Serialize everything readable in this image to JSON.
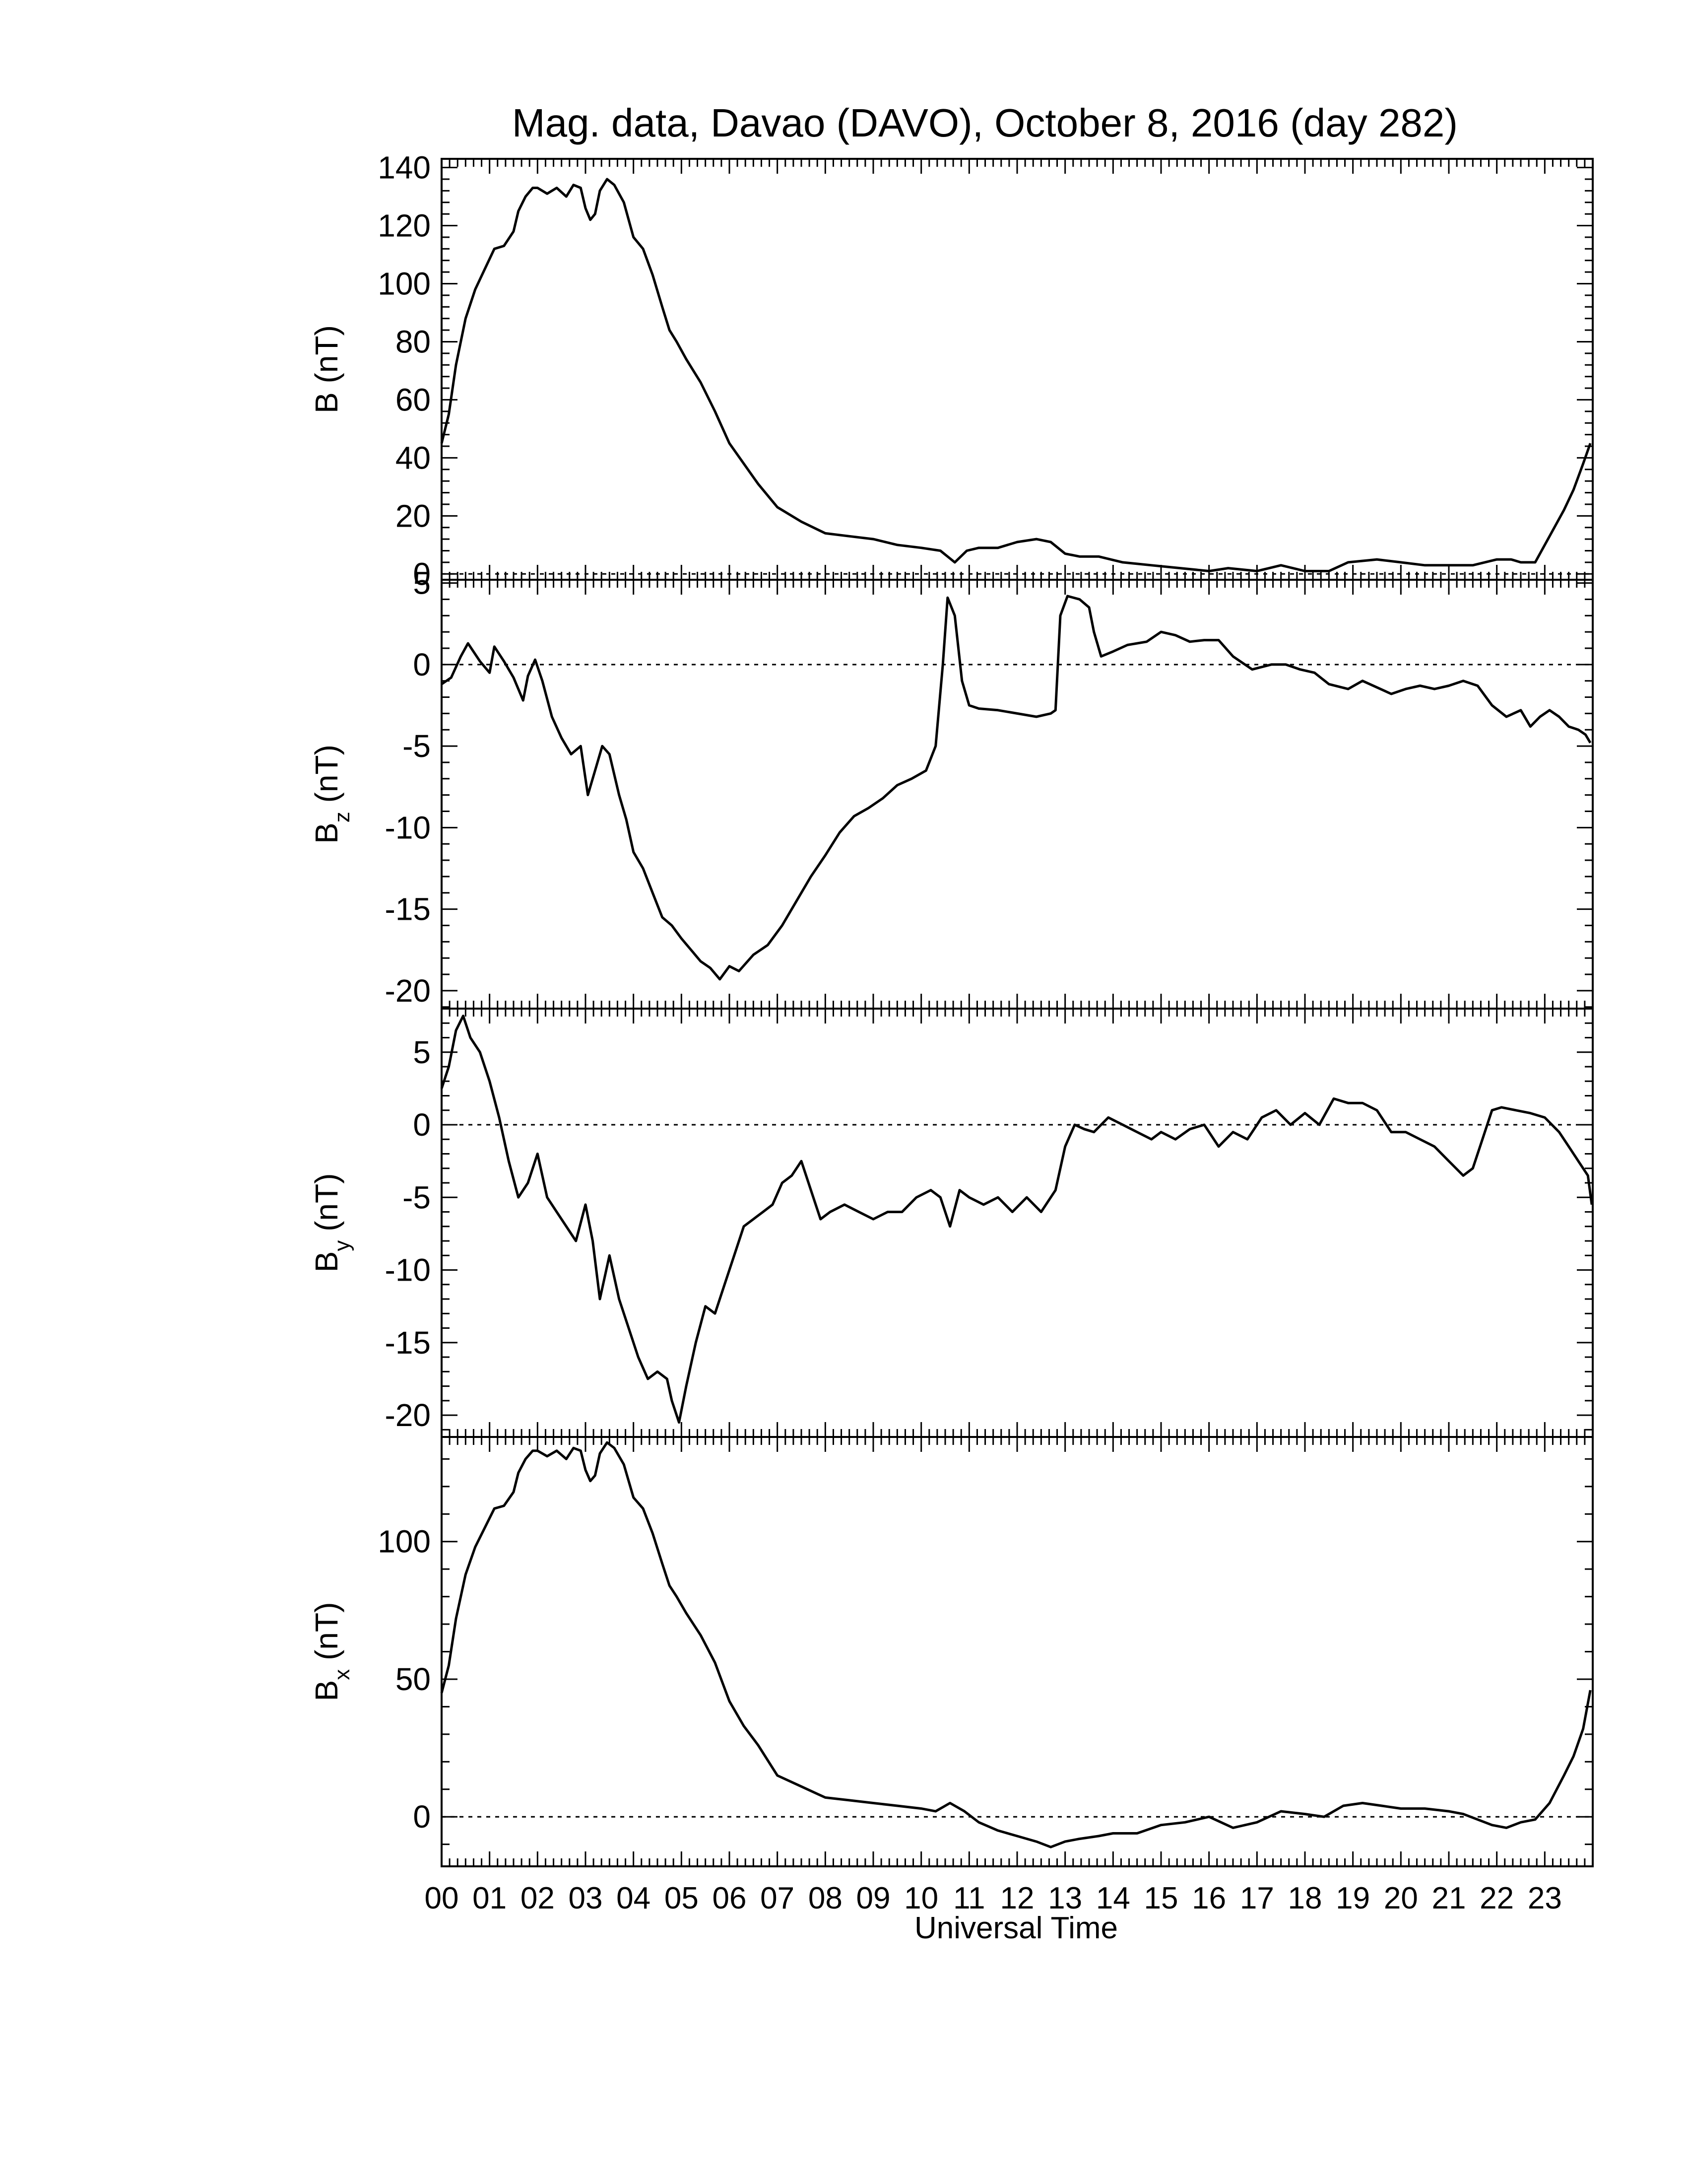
{
  "title": "Mag. data, Davao (DAVO), October 8, 2016 (day 282)",
  "xlabel": "Universal Time",
  "xticks": [
    "00",
    "01",
    "02",
    "03",
    "04",
    "05",
    "06",
    "07",
    "08",
    "09",
    "10",
    "11",
    "12",
    "13",
    "14",
    "15",
    "16",
    "17",
    "18",
    "19",
    "20",
    "21",
    "22",
    "23"
  ],
  "line_color": "#000000",
  "chart_data": [
    {
      "type": "line",
      "ylabel": "B (nT)",
      "ylabel_main": "B",
      "ylabel_sub": "",
      "ylabel_unit": " (nT)",
      "ylim": [
        -2,
        143
      ],
      "xlim": [
        0,
        24
      ],
      "yticks": [
        0,
        20,
        40,
        60,
        80,
        100,
        120,
        140
      ],
      "zero_line": true,
      "series": [
        {
          "x": [
            0,
            0.15,
            0.3,
            0.5,
            0.7,
            0.9,
            1.1,
            1.3,
            1.5,
            1.6,
            1.75,
            1.9,
            2.0,
            2.2,
            2.4,
            2.6,
            2.75,
            2.9,
            3.0,
            3.1,
            3.2,
            3.3,
            3.45,
            3.6,
            3.8,
            4.0,
            4.2,
            4.4,
            4.6,
            4.75,
            4.9,
            5.1,
            5.4,
            5.7,
            6.0,
            6.3,
            6.6,
            7.0,
            7.5,
            8.0,
            8.5,
            9.0,
            9.5,
            10.0,
            10.4,
            10.7,
            10.95,
            11.2,
            11.6,
            12.0,
            12.4,
            12.7,
            13.0,
            13.3,
            13.7,
            14.2,
            14.8,
            15.4,
            16.0,
            16.4,
            17.0,
            17.5,
            18.0,
            18.5,
            18.9,
            19.5,
            20.0,
            20.5,
            21.0,
            21.5,
            22.0,
            22.3,
            22.5,
            22.8,
            23.1,
            23.4,
            23.6,
            23.8,
            23.95
          ],
          "y": [
            45,
            55,
            72,
            88,
            98,
            105,
            112,
            113,
            118,
            125,
            130,
            133,
            133,
            131,
            133,
            130,
            134,
            133,
            126,
            122,
            124,
            132,
            136,
            134,
            128,
            116,
            112,
            103,
            92,
            84,
            80,
            74,
            66,
            56,
            45,
            38,
            31,
            23,
            18,
            14,
            13,
            12,
            10,
            9,
            8,
            4,
            8,
            9,
            9,
            11,
            12,
            11,
            7,
            6,
            6,
            4,
            3,
            2,
            1,
            2,
            1,
            3,
            1,
            1,
            4,
            5,
            4,
            3,
            3,
            3,
            5,
            5,
            4,
            4,
            13,
            22,
            29,
            38,
            45
          ]
        }
      ]
    },
    {
      "type": "line",
      "ylabel": "Bz (nT)",
      "ylabel_main": "B",
      "ylabel_sub": "z",
      "ylabel_unit": " (nT)",
      "ylim": [
        -21.1,
        5.2
      ],
      "xlim": [
        0,
        24
      ],
      "yticks": [
        5,
        0,
        -5,
        -10,
        -15,
        -20
      ],
      "zero_line": true,
      "series": [
        {
          "x": [
            0,
            0.2,
            0.4,
            0.55,
            0.8,
            1.0,
            1.1,
            1.3,
            1.5,
            1.7,
            1.8,
            1.95,
            2.1,
            2.3,
            2.5,
            2.7,
            2.9,
            3.05,
            3.2,
            3.35,
            3.5,
            3.7,
            3.85,
            4.0,
            4.2,
            4.4,
            4.6,
            4.8,
            5.0,
            5.2,
            5.4,
            5.6,
            5.8,
            6.0,
            6.2,
            6.5,
            6.8,
            7.1,
            7.4,
            7.7,
            8.0,
            8.3,
            8.6,
            8.9,
            9.2,
            9.5,
            9.8,
            10.1,
            10.3,
            10.45,
            10.55,
            10.7,
            10.85,
            11.0,
            11.2,
            11.6,
            12.0,
            12.4,
            12.7,
            12.8,
            12.9,
            13.05,
            13.3,
            13.5,
            13.6,
            13.75,
            14.0,
            14.3,
            14.7,
            15.0,
            15.3,
            15.6,
            15.9,
            16.2,
            16.5,
            16.9,
            17.3,
            17.6,
            17.9,
            18.2,
            18.5,
            18.9,
            19.2,
            19.5,
            19.8,
            20.1,
            20.4,
            20.7,
            21.0,
            21.3,
            21.6,
            21.9,
            22.2,
            22.5,
            22.7,
            22.9,
            23.1,
            23.3,
            23.5,
            23.7,
            23.85,
            23.95
          ],
          "y": [
            -1.2,
            -0.8,
            0.5,
            1.3,
            0.2,
            -0.5,
            1.1,
            0.2,
            -0.8,
            -2.2,
            -0.7,
            0.3,
            -1.0,
            -3.2,
            -4.5,
            -5.5,
            -5.0,
            -8.0,
            -6.5,
            -5.0,
            -5.5,
            -8.0,
            -9.5,
            -11.5,
            -12.5,
            -14.0,
            -15.5,
            -16.0,
            -16.8,
            -17.5,
            -18.2,
            -18.6,
            -19.3,
            -18.5,
            -18.8,
            -17.8,
            -17.2,
            -16.0,
            -14.5,
            -13.0,
            -11.7,
            -10.3,
            -9.3,
            -8.8,
            -8.2,
            -7.4,
            -7.0,
            -6.5,
            -5.0,
            0.0,
            4.1,
            3.0,
            -1.0,
            -2.5,
            -2.7,
            -2.8,
            -3.0,
            -3.2,
            -3.0,
            -2.8,
            3.0,
            4.2,
            4.0,
            3.5,
            2.0,
            0.5,
            0.8,
            1.2,
            1.4,
            2.0,
            1.8,
            1.4,
            1.5,
            1.5,
            0.5,
            -0.3,
            0.0,
            0.0,
            -0.3,
            -0.5,
            -1.2,
            -1.5,
            -1.0,
            -1.4,
            -1.8,
            -1.5,
            -1.3,
            -1.5,
            -1.3,
            -1.0,
            -1.3,
            -2.5,
            -3.2,
            -2.8,
            -3.8,
            -3.2,
            -2.8,
            -3.2,
            -3.8,
            -4.0,
            -4.3,
            -4.8
          ]
        }
      ]
    },
    {
      "type": "line",
      "ylabel": "By (nT)",
      "ylabel_main": "B",
      "ylabel_sub": "y",
      "ylabel_unit": " (nT)",
      "ylim": [
        -21.5,
        8.0
      ],
      "xlim": [
        0,
        24
      ],
      "yticks": [
        5,
        0,
        -5,
        -10,
        -15,
        -20
      ],
      "zero_line": true,
      "series": [
        {
          "x": [
            0,
            0.15,
            0.3,
            0.45,
            0.6,
            0.8,
            1.0,
            1.2,
            1.4,
            1.6,
            1.8,
            2.0,
            2.2,
            2.4,
            2.6,
            2.8,
            3.0,
            3.15,
            3.3,
            3.5,
            3.7,
            3.9,
            4.1,
            4.3,
            4.5,
            4.7,
            4.8,
            4.95,
            5.1,
            5.3,
            5.5,
            5.7,
            5.9,
            6.1,
            6.3,
            6.5,
            6.7,
            6.9,
            7.1,
            7.3,
            7.5,
            7.7,
            7.9,
            8.1,
            8.4,
            8.7,
            9.0,
            9.3,
            9.6,
            9.9,
            10.2,
            10.4,
            10.6,
            10.8,
            11.0,
            11.3,
            11.6,
            11.9,
            12.2,
            12.5,
            12.8,
            13.0,
            13.2,
            13.4,
            13.6,
            13.9,
            14.2,
            14.5,
            14.8,
            15.0,
            15.3,
            15.6,
            15.9,
            16.2,
            16.5,
            16.8,
            17.1,
            17.4,
            17.7,
            18.0,
            18.3,
            18.6,
            18.9,
            19.2,
            19.5,
            19.8,
            20.1,
            20.4,
            20.7,
            21.0,
            21.3,
            21.5,
            21.7,
            21.9,
            22.1,
            22.4,
            22.7,
            23.0,
            23.3,
            23.5,
            23.7,
            23.9,
            23.98
          ],
          "y": [
            2.5,
            4.0,
            6.5,
            7.5,
            6.0,
            5.0,
            3.0,
            0.5,
            -2.5,
            -5.0,
            -4.0,
            -2.0,
            -5.0,
            -6.0,
            -7.0,
            -8.0,
            -5.5,
            -8.0,
            -12.0,
            -9.0,
            -12.0,
            -14.0,
            -16.0,
            -17.5,
            -17.0,
            -17.5,
            -19.0,
            -20.5,
            -18.0,
            -15.0,
            -12.5,
            -13.0,
            -11.0,
            -9.0,
            -7.0,
            -6.5,
            -6.0,
            -5.5,
            -4.0,
            -3.5,
            -2.5,
            -4.5,
            -6.5,
            -6.0,
            -5.5,
            -6.0,
            -6.5,
            -6.0,
            -6.0,
            -5.0,
            -4.5,
            -5.0,
            -7.0,
            -4.5,
            -5.0,
            -5.5,
            -5.0,
            -6.0,
            -5.0,
            -6.0,
            -4.5,
            -1.5,
            0.0,
            -0.3,
            -0.5,
            0.5,
            0.0,
            -0.5,
            -1.0,
            -0.5,
            -1.0,
            -0.3,
            0.0,
            -1.5,
            -0.5,
            -1.0,
            0.5,
            1.0,
            0.0,
            0.8,
            0.0,
            1.8,
            1.5,
            1.5,
            1.0,
            -0.5,
            -0.5,
            -1.0,
            -1.5,
            -2.5,
            -3.5,
            -3.0,
            -1.0,
            1.0,
            1.2,
            1.0,
            0.8,
            0.5,
            -0.5,
            -1.5,
            -2.5,
            -3.5,
            -5.5
          ]
        }
      ]
    },
    {
      "type": "line",
      "ylabel": "Bx (nT)",
      "ylabel_main": "B",
      "ylabel_sub": "x",
      "ylabel_unit": " (nT)",
      "ylim": [
        -18,
        138
      ],
      "xlim": [
        0,
        24
      ],
      "yticks": [
        0,
        50,
        100
      ],
      "zero_line": true,
      "series": [
        {
          "x": [
            0,
            0.15,
            0.3,
            0.5,
            0.7,
            0.9,
            1.1,
            1.3,
            1.5,
            1.6,
            1.75,
            1.9,
            2.0,
            2.2,
            2.4,
            2.6,
            2.75,
            2.9,
            3.0,
            3.1,
            3.2,
            3.3,
            3.45,
            3.6,
            3.8,
            4.0,
            4.2,
            4.4,
            4.6,
            4.75,
            4.9,
            5.1,
            5.4,
            5.7,
            6.0,
            6.3,
            6.6,
            7.0,
            7.5,
            8.0,
            8.5,
            9.0,
            9.5,
            10.0,
            10.3,
            10.6,
            10.9,
            11.2,
            11.6,
            12.0,
            12.4,
            12.7,
            13.0,
            13.3,
            13.7,
            14.0,
            14.5,
            15.0,
            15.5,
            16.0,
            16.5,
            17.0,
            17.5,
            18.0,
            18.4,
            18.8,
            19.2,
            19.6,
            20.0,
            20.5,
            21.0,
            21.3,
            21.6,
            21.9,
            22.2,
            22.5,
            22.8,
            23.1,
            23.4,
            23.6,
            23.8,
            23.95
          ],
          "y": [
            45,
            55,
            72,
            88,
            98,
            105,
            112,
            113,
            118,
            125,
            130,
            133,
            133,
            131,
            133,
            130,
            134,
            133,
            126,
            122,
            124,
            132,
            136,
            134,
            128,
            116,
            112,
            103,
            92,
            84,
            80,
            74,
            66,
            56,
            42,
            33,
            26,
            15,
            11,
            7,
            6,
            5,
            4,
            3,
            2,
            5,
            2,
            -2,
            -5,
            -7,
            -9,
            -11,
            -9,
            -8,
            -7,
            -6,
            -6,
            -3,
            -2,
            0,
            -4,
            -2,
            2,
            1,
            0,
            4,
            5,
            4,
            3,
            3,
            2,
            1,
            -1,
            -3,
            -4,
            -2,
            -1,
            5,
            15,
            22,
            32,
            46
          ]
        }
      ]
    }
  ]
}
